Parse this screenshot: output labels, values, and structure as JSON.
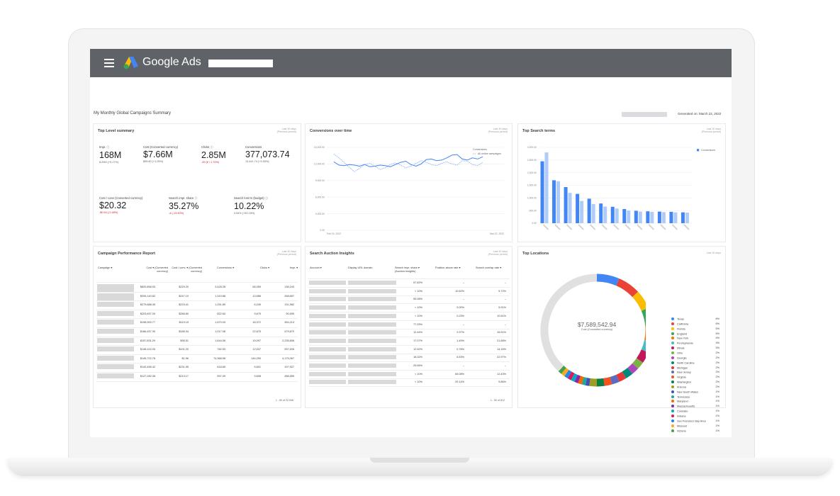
{
  "app": {
    "brand": "Google Ads"
  },
  "page": {
    "title": "My Monthly Global Campaigns Summary",
    "generated": "Generated on: March 22, 2022"
  },
  "top_level": {
    "title": "Top Level summary",
    "meta": [
      "Last 30 days",
      "(Previous period)"
    ],
    "metrics": [
      {
        "label": "Impr. ⓘ",
        "value": "168M",
        "change": "8.20M (+5.17%)",
        "negative": false
      },
      {
        "label": "Cost (Converted currency)",
        "value": "$7.66M",
        "change": "$95.80 (+1.25%)",
        "negative": false
      },
      {
        "label": "Clicks ⓘ",
        "value": "2.85M",
        "change": "-49 (¥ / 1.70%)",
        "negative": true
      },
      {
        "label": "Conversions",
        "value": "377,073.74",
        "change": "13,441.74 (+3.55%)",
        "negative": false
      },
      {
        "label": "Cost / conv (Converted currency)",
        "value": "$20.32",
        "change": "-$0.54 (-2.48%)",
        "negative": true
      },
      {
        "label": "Search impr. share ⓘ",
        "value": "35.27%",
        "change": "-4 (-13.40%)",
        "negative": true
      },
      {
        "label": "Search lost IS (budget) ⓘ",
        "value": "10.22%",
        "change": "0.54% (+53.16%)",
        "negative": false
      }
    ]
  },
  "conversions": {
    "title": "Conversions over time",
    "meta": [
      "Last 30 days",
      "(Previous period)"
    ],
    "legend": [
      "Conversions",
      "All online campaigns"
    ],
    "x_start": "Feb 19, 2022",
    "x_end": "Mar 22, 2022",
    "y_ticks": [
      "15,000.00",
      "12,000.00",
      "9,000.00",
      "6,000.00",
      "3,000.00",
      "0.00"
    ]
  },
  "search_terms": {
    "title": "Top Search terms",
    "meta": [
      "Last 30 days",
      "(Previous period)"
    ],
    "legend": "Conversions",
    "y_ticks": [
      "3,000.00",
      "2,500.00",
      "2,000.00",
      "1,500.00",
      "1,000.00",
      "500.00",
      "0.00"
    ]
  },
  "campaign_report": {
    "title": "Campaign Performance Report",
    "meta": [
      "Last 30 days",
      "(Previous period)"
    ],
    "headers": [
      "Campaign ▾",
      "Cost ▾ (Converted currency)",
      "Cost / conv. ▾ (Converted currency)",
      "Conversions ▾",
      "Clicks ▾",
      "Impr. ▾"
    ],
    "rows": [
      [
        "$820,858.93",
        "$229.20",
        "3,428.28",
        "68,359",
        "136,243"
      ],
      [
        "$206,140.82",
        "$247.10",
        "1,319.88",
        "13,586",
        "268,657"
      ],
      [
        "$279,688.45",
        "$223.41",
        "1,251.89",
        "6,249",
        "131,982"
      ],
      [
        "$203,697.00",
        "$266.80",
        "822.63",
        "9,675",
        "90,695"
      ],
      [
        "$198,900.77",
        "$119.15",
        "1,670.03",
        "18,372",
        "354,213"
      ],
      [
        "$186,457.39",
        "$185.34",
        "1,017.08",
        "22,675",
        "479,870"
      ],
      [
        "$157,831.29",
        "$95.51",
        "1,644.08",
        "19,097",
        "2,235,806"
      ],
      [
        "$148,102.05",
        "$191.20",
        "782.53",
        "12,537",
        "257,526"
      ],
      [
        "$145,722.78",
        "$1.96",
        "74,368.58",
        "144,290",
        "4,175,067"
      ],
      [
        "$143,455.42",
        "$231.95",
        "618.65",
        "5,601",
        "197,927"
      ],
      [
        "$127,282.35",
        "$213.17",
        "597.09",
        "9,608",
        "288,559"
      ]
    ],
    "footer": "1 - 50 of 22,546"
  },
  "auction": {
    "title": "Search Auction Insights",
    "meta": [
      "Last 30 days",
      "(Previous period)"
    ],
    "headers": [
      "Account ▾",
      "Display URL domain",
      "Search impr. share ▾ (Auction Insights)",
      "Position above rate ▾",
      "Search overlap rate ▾"
    ],
    "rows": [
      [
        "57.82%",
        "–",
        "–"
      ],
      [
        "< 10%",
        "10.62%",
        "5.72%"
      ],
      [
        "55.08%",
        "–",
        "–"
      ],
      [
        "< 10%",
        "0.00%",
        "5.91%"
      ],
      [
        "< 10%",
        "0.23%",
        "10.61%"
      ],
      [
        "77.25%",
        "–",
        "–"
      ],
      [
        "12.44%",
        "2.97%",
        "15.51%"
      ],
      [
        "17.07%",
        "1.49%",
        "21.68%"
      ],
      [
        "12.52%",
        "0.78%",
        "14.16%"
      ],
      [
        "18.32%",
        "6.53%",
        "22.97%"
      ],
      [
        "25.56%",
        "–",
        "–"
      ],
      [
        "< 10%",
        "65.08%",
        "12.43%"
      ],
      [
        "< 10%",
        "29.14%",
        "5.86%"
      ]
    ],
    "footer": "1 - 50 of 812"
  },
  "locations": {
    "title": "Top Locations",
    "meta": "Last 30 days",
    "center_value": "$7,589,542.94",
    "center_label": "Cost (Converted currency)",
    "items": [
      {
        "name": "Texas",
        "pct": "6%",
        "color": "#4285f4"
      },
      {
        "name": "California",
        "pct": "6%",
        "color": "#ea4335"
      },
      {
        "name": "Florida",
        "pct": "5%",
        "color": "#fbbc04"
      },
      {
        "name": "England",
        "pct": "5%",
        "color": "#34a853"
      },
      {
        "name": "New York",
        "pct": "4%",
        "color": "#ff6d01"
      },
      {
        "name": "Pennsylvania",
        "pct": "3%",
        "color": "#46bdc6"
      },
      {
        "name": "Illinois",
        "pct": "3%",
        "color": "#c2185b"
      },
      {
        "name": "Ohio",
        "pct": "2%",
        "color": "#7cb342"
      },
      {
        "name": "Georgia",
        "pct": "2%",
        "color": "#ab47bc"
      },
      {
        "name": "North Carolina",
        "pct": "2%",
        "color": "#00897b"
      },
      {
        "name": "Michigan",
        "pct": "2%",
        "color": "#e53935"
      },
      {
        "name": "New Jersey",
        "pct": "2%",
        "color": "#5c6bc0"
      },
      {
        "name": "Virginia",
        "pct": "2%",
        "color": "#f4511e"
      },
      {
        "name": "Washington",
        "pct": "2%",
        "color": "#0b8043"
      },
      {
        "name": "Arizona",
        "pct": "2%",
        "color": "#9e9d24"
      },
      {
        "name": "New South Wales",
        "pct": "1%",
        "color": "#3f51b5"
      },
      {
        "name": "Tennessee",
        "pct": "1%",
        "color": "#26a69a"
      },
      {
        "name": "Maryland",
        "pct": "1%",
        "color": "#ef6c00"
      },
      {
        "name": "Massachusetts",
        "pct": "1%",
        "color": "#8e24aa"
      },
      {
        "name": "Colorado",
        "pct": "1%",
        "color": "#00acc1"
      },
      {
        "name": "Indiana",
        "pct": "1%",
        "color": "#d81b60"
      },
      {
        "name": "San Francisco Bay Area",
        "pct": "1%",
        "color": "#1e88e5"
      },
      {
        "name": "Missouri",
        "pct": "1%",
        "color": "#f9a825"
      },
      {
        "name": "Victoria",
        "pct": "1%",
        "color": "#43a047"
      }
    ]
  },
  "chart_data": [
    {
      "type": "line",
      "title": "Conversions over time",
      "ylim": [
        0,
        15000
      ],
      "series": [
        {
          "name": "Conversions",
          "values": [
            12400,
            11800,
            11700,
            11900,
            11800,
            11600,
            11900,
            11500,
            11600,
            11800,
            11700,
            11500,
            11900,
            12300,
            12500,
            11900,
            11600,
            12000,
            12800,
            12900,
            12600,
            12700,
            13100,
            13600,
            13700,
            12900,
            12700,
            13100,
            12900,
            13300
          ]
        },
        {
          "name": "All online campaigns",
          "values": [
            13800,
            13100,
            12300,
            11400,
            10600,
            11200,
            11900,
            12100,
            11600,
            11000,
            11300,
            11900,
            12200,
            11800,
            11300,
            11600,
            12100,
            12600,
            12300,
            11900,
            11700,
            12100,
            12400,
            12000,
            11800,
            12600,
            12500,
            11900,
            11700,
            12300
          ]
        }
      ]
    },
    {
      "type": "bar",
      "title": "Top Search terms",
      "ylim": [
        0,
        3000
      ],
      "series": [
        {
          "name": "Conversions",
          "values": [
            2450,
            1700,
            1430,
            1160,
            970,
            780,
            650,
            560,
            490,
            470,
            460,
            450,
            430
          ]
        },
        {
          "name": "Previous period",
          "values": [
            2800,
            1660,
            1200,
            880,
            760,
            660,
            580,
            500,
            460,
            450,
            440,
            430,
            420
          ]
        }
      ]
    },
    {
      "type": "pie",
      "title": "Top Locations",
      "categories": [
        "Texas",
        "California",
        "Florida",
        "England",
        "New York",
        "Pennsylvania",
        "Illinois",
        "Ohio",
        "Georgia",
        "North Carolina",
        "Michigan",
        "New Jersey",
        "Virginia",
        "Washington",
        "Arizona",
        "New South Wales",
        "Tennessee",
        "Maryland",
        "Massachusetts",
        "Colorado",
        "Indiana",
        "San Francisco Bay Area",
        "Missouri",
        "Victoria",
        "Other"
      ],
      "values": [
        6,
        6,
        5,
        5,
        4,
        3,
        3,
        2,
        2,
        2,
        2,
        2,
        2,
        2,
        2,
        1,
        1,
        1,
        1,
        1,
        1,
        1,
        1,
        1,
        35
      ]
    }
  ]
}
